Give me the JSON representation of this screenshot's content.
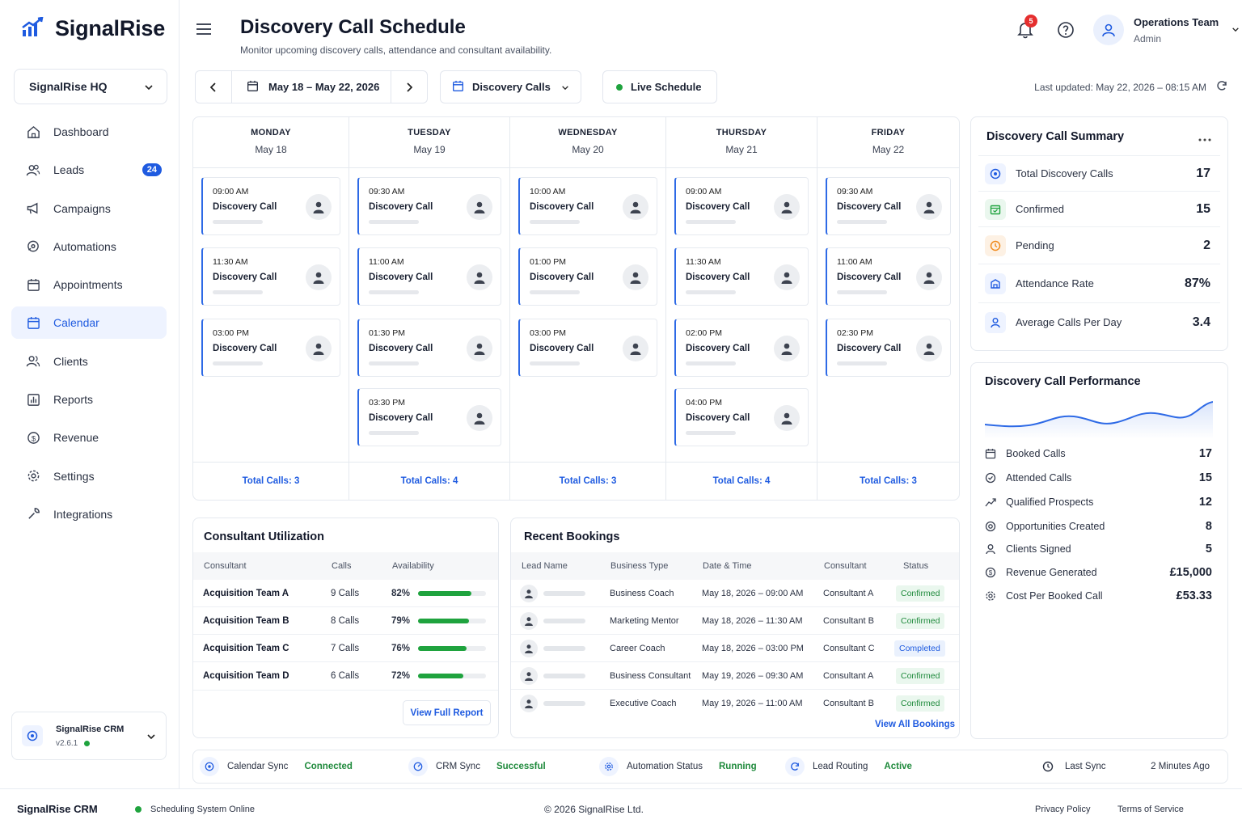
{
  "brand": {
    "name": "SignalRise"
  },
  "workspace": {
    "name": "SignalRise HQ"
  },
  "sidebar": {
    "items": [
      {
        "label": "Dashboard",
        "icon": "home-icon"
      },
      {
        "label": "Leads",
        "icon": "users-icon",
        "badge": "24"
      },
      {
        "label": "Campaigns",
        "icon": "megaphone-icon"
      },
      {
        "label": "Automations",
        "icon": "automation-icon"
      },
      {
        "label": "Appointments",
        "icon": "calendar-icon"
      },
      {
        "label": "Calendar",
        "icon": "calendar-icon",
        "active": true
      },
      {
        "label": "Clients",
        "icon": "clients-icon"
      },
      {
        "label": "Reports",
        "icon": "reports-icon"
      },
      {
        "label": "Revenue",
        "icon": "dollar-icon"
      },
      {
        "label": "Settings",
        "icon": "gear-icon"
      },
      {
        "label": "Integrations",
        "icon": "wrench-icon"
      }
    ],
    "crm": {
      "name": "SignalRise CRM",
      "version": "v2.6.1"
    }
  },
  "header": {
    "title": "Discovery Call Schedule",
    "subtitle": "Monitor upcoming discovery calls, attendance and consultant availability.",
    "notifications": "5",
    "user": {
      "name": "Operations Team",
      "role": "Admin"
    }
  },
  "toolbar": {
    "date_range": "May 18 – May 22, 2026",
    "filter": "Discovery Calls",
    "live": "Live Schedule",
    "updated": "Last updated: May 22, 2026 – 08:15 AM"
  },
  "calendar": {
    "days": [
      {
        "day": "MONDAY",
        "date": "May 18",
        "total": "Total Calls: 3",
        "events": [
          {
            "time": "09:00 AM",
            "title": "Discovery Call"
          },
          {
            "time": "11:30 AM",
            "title": "Discovery Call"
          },
          {
            "time": "03:00 PM",
            "title": "Discovery Call"
          }
        ]
      },
      {
        "day": "TUESDAY",
        "date": "May 19",
        "total": "Total Calls: 4",
        "events": [
          {
            "time": "09:30 AM",
            "title": "Discovery Call"
          },
          {
            "time": "11:00 AM",
            "title": "Discovery Call"
          },
          {
            "time": "01:30 PM",
            "title": "Discovery Call"
          },
          {
            "time": "03:30 PM",
            "title": "Discovery Call"
          }
        ]
      },
      {
        "day": "WEDNESDAY",
        "date": "May 20",
        "total": "Total Calls: 3",
        "events": [
          {
            "time": "10:00 AM",
            "title": "Discovery Call"
          },
          {
            "time": "01:00 PM",
            "title": "Discovery Call"
          },
          {
            "time": "03:00 PM",
            "title": "Discovery Call"
          }
        ]
      },
      {
        "day": "THURSDAY",
        "date": "May 21",
        "total": "Total Calls: 4",
        "events": [
          {
            "time": "09:00 AM",
            "title": "Discovery Call"
          },
          {
            "time": "11:30 AM",
            "title": "Discovery Call"
          },
          {
            "time": "02:00 PM",
            "title": "Discovery Call"
          },
          {
            "time": "04:00 PM",
            "title": "Discovery Call"
          }
        ]
      },
      {
        "day": "FRIDAY",
        "date": "May 22",
        "total": "Total Calls: 3",
        "events": [
          {
            "time": "09:30 AM",
            "title": "Discovery Call"
          },
          {
            "time": "11:00 AM",
            "title": "Discovery Call"
          },
          {
            "time": "02:30 PM",
            "title": "Discovery Call"
          }
        ]
      }
    ]
  },
  "summary": {
    "title": "Discovery Call Summary",
    "rows": [
      {
        "label": "Total Discovery Calls",
        "value": "17",
        "color": "#1f5be0"
      },
      {
        "label": "Confirmed",
        "value": "15",
        "color": "#1fa33e"
      },
      {
        "label": "Pending",
        "value": "2",
        "color": "#f08a1c"
      },
      {
        "label": "Attendance Rate",
        "value": "87%",
        "color": "#1f5be0"
      },
      {
        "label": "Average Calls Per Day",
        "value": "3.4",
        "color": "#1f5be0"
      }
    ]
  },
  "performance": {
    "title": "Discovery Call Performance",
    "rows": [
      {
        "label": "Booked Calls",
        "value": "17"
      },
      {
        "label": "Attended Calls",
        "value": "15"
      },
      {
        "label": "Qualified Prospects",
        "value": "12"
      },
      {
        "label": "Opportunities Created",
        "value": "8"
      },
      {
        "label": "Clients Signed",
        "value": "5"
      },
      {
        "label": "Revenue Generated",
        "value": "£15,000"
      },
      {
        "label": "Cost Per Booked Call",
        "value": "£53.33"
      }
    ]
  },
  "utilization": {
    "title": "Consultant Utilization",
    "headers": [
      "Consultant",
      "Calls",
      "Availability"
    ],
    "rows": [
      {
        "name": "Acquisition Team A",
        "calls": "9 Calls",
        "availability": "82%",
        "pct": 82
      },
      {
        "name": "Acquisition Team B",
        "calls": "8 Calls",
        "availability": "79%",
        "pct": 79
      },
      {
        "name": "Acquisition Team C",
        "calls": "7 Calls",
        "availability": "76%",
        "pct": 76
      },
      {
        "name": "Acquisition Team D",
        "calls": "6 Calls",
        "availability": "72%",
        "pct": 72
      }
    ],
    "link": "View Full Report"
  },
  "bookings": {
    "title": "Recent Bookings",
    "headers": [
      "Lead Name",
      "Business Type",
      "Date & Time",
      "Consultant",
      "Status"
    ],
    "rows": [
      {
        "type": "Business Coach",
        "datetime": "May 18, 2026 – 09:00 AM",
        "consultant": "Consultant A",
        "status": "Confirmed"
      },
      {
        "type": "Marketing Mentor",
        "datetime": "May 18, 2026 – 11:30 AM",
        "consultant": "Consultant B",
        "status": "Confirmed"
      },
      {
        "type": "Career Coach",
        "datetime": "May 18, 2026 – 03:00 PM",
        "consultant": "Consultant C",
        "status": "Completed"
      },
      {
        "type": "Business Consultant",
        "datetime": "May 19, 2026 – 09:30 AM",
        "consultant": "Consultant A",
        "status": "Confirmed"
      },
      {
        "type": "Executive Coach",
        "datetime": "May 19, 2026 – 11:00 AM",
        "consultant": "Consultant B",
        "status": "Confirmed"
      }
    ],
    "link": "View All Bookings"
  },
  "statusbar": {
    "items": [
      {
        "label": "Calendar Sync",
        "value": "Connected"
      },
      {
        "label": "CRM Sync",
        "value": "Successful"
      },
      {
        "label": "Automation Status",
        "value": "Running"
      },
      {
        "label": "Lead Routing",
        "value": "Active"
      }
    ],
    "last_sync_label": "Last Sync",
    "last_sync_value": "2 Minutes Ago"
  },
  "footer": {
    "brand": "SignalRise CRM",
    "status": "Scheduling System Online",
    "copyright": "© 2026 SignalRise Ltd.",
    "privacy": "Privacy Policy",
    "terms": "Terms of Service"
  }
}
